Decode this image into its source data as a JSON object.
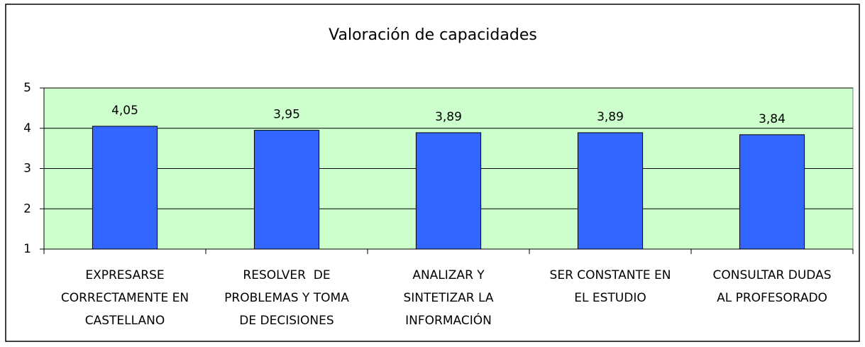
{
  "chart_data": {
    "type": "bar",
    "title": "Valoración de capacidades",
    "categories": [
      [
        "EXPRESARSE",
        "CORRECTAMENTE EN",
        "CASTELLANO"
      ],
      [
        "RESOLVER  DE",
        "PROBLEMAS Y TOMA",
        "DE DECISIONES"
      ],
      [
        "ANALIZAR Y",
        "SINTETIZAR LA",
        "INFORMACIÓN"
      ],
      [
        "SER CONSTANTE EN",
        "EL ESTUDIO"
      ],
      [
        "CONSULTAR DUDAS",
        "AL PROFESORADO"
      ]
    ],
    "values": [
      4.05,
      3.95,
      3.89,
      3.89,
      3.84
    ],
    "value_labels": [
      "4,05",
      "3,95",
      "3,89",
      "3,89",
      "3,84"
    ],
    "color": "#3366ff",
    "plot_background": "#ccffcc",
    "ylim": [
      1,
      5
    ],
    "yticks": [
      1,
      2,
      3,
      4,
      5
    ],
    "grid": true
  }
}
